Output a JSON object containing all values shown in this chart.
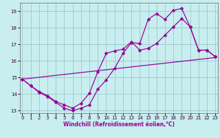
{
  "xlabel": "Windchill (Refroidissement éolien,°C)",
  "bg_color": "#c8eef0",
  "grid_color": "#a0ccd0",
  "line_color": "#990099",
  "ylim": [
    12.85,
    19.5
  ],
  "xlim": [
    -0.3,
    23.3
  ],
  "yticks": [
    13,
    14,
    15,
    16,
    17,
    18,
    19
  ],
  "xticks": [
    0,
    1,
    2,
    3,
    4,
    5,
    6,
    7,
    8,
    9,
    10,
    11,
    12,
    13,
    14,
    15,
    16,
    17,
    18,
    19,
    20,
    21,
    22,
    23
  ],
  "line1_x": [
    0,
    1,
    2,
    3,
    4,
    5,
    6,
    7,
    8,
    9,
    10,
    11,
    12,
    13,
    14,
    15,
    16,
    17,
    18,
    19,
    20,
    21,
    22,
    23
  ],
  "line1_y": [
    14.9,
    14.5,
    14.1,
    13.85,
    13.5,
    13.15,
    13.0,
    13.15,
    13.35,
    14.3,
    14.85,
    15.55,
    16.45,
    17.1,
    17.05,
    18.5,
    18.85,
    18.5,
    19.05,
    19.15,
    18.05,
    16.65,
    16.65,
    16.25
  ],
  "line2_x": [
    0,
    1,
    2,
    3,
    4,
    5,
    6,
    7,
    8,
    9,
    10,
    11,
    12,
    13,
    14,
    15,
    16,
    17,
    18,
    19,
    20,
    21,
    22,
    23
  ],
  "line2_y": [
    14.9,
    14.5,
    14.15,
    13.9,
    13.55,
    13.35,
    13.15,
    13.45,
    14.05,
    15.35,
    16.45,
    16.6,
    16.7,
    17.15,
    16.65,
    16.75,
    17.05,
    17.55,
    18.05,
    18.55,
    18.05,
    16.65,
    16.65,
    16.25
  ],
  "line3_x": [
    0,
    23
  ],
  "line3_y": [
    14.9,
    16.2
  ]
}
